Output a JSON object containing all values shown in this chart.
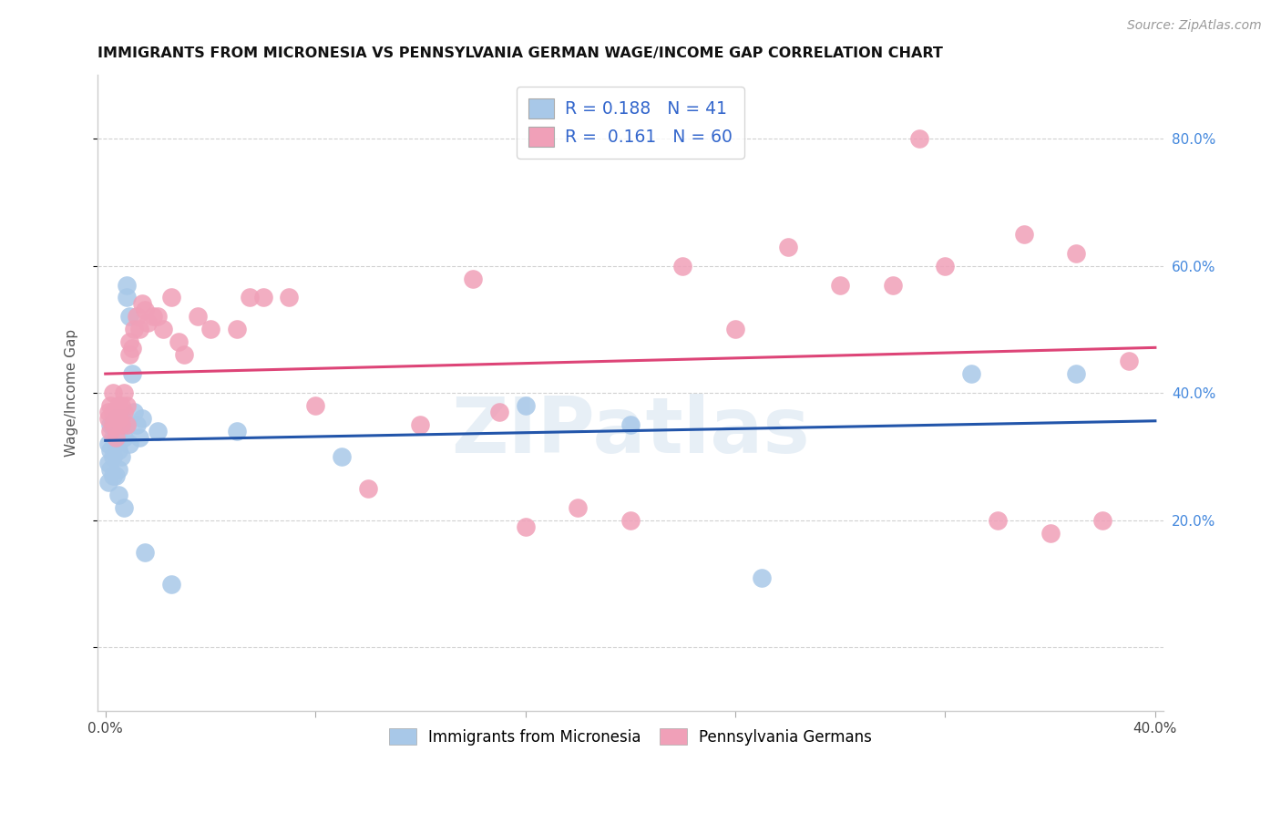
{
  "title": "IMMIGRANTS FROM MICRONESIA VS PENNSYLVANIA GERMAN WAGE/INCOME GAP CORRELATION CHART",
  "source": "Source: ZipAtlas.com",
  "ylabel": "Wage/Income Gap",
  "xlim": [
    -0.003,
    0.403
  ],
  "ylim": [
    -0.1,
    0.9
  ],
  "yticks": [
    0.0,
    0.2,
    0.4,
    0.6,
    0.8
  ],
  "xtick_positions": [
    0.0,
    0.08,
    0.16,
    0.24,
    0.32,
    0.4
  ],
  "xtick_labels": [
    "0.0%",
    "",
    "",
    "",
    "",
    "40.0%"
  ],
  "ytick_right_labels": [
    "",
    "20.0%",
    "40.0%",
    "60.0%",
    "80.0%"
  ],
  "legend_labels": [
    "Immigrants from Micronesia",
    "Pennsylvania Germans"
  ],
  "series1_color": "#a8c8e8",
  "series2_color": "#f0a0b8",
  "line1_color": "#2255aa",
  "line2_color": "#dd4477",
  "R1": 0.188,
  "N1": 41,
  "R2": 0.161,
  "N2": 60,
  "watermark": "ZIPatlas",
  "blue_x": [
    0.001,
    0.001,
    0.001,
    0.002,
    0.002,
    0.002,
    0.003,
    0.003,
    0.003,
    0.003,
    0.004,
    0.004,
    0.004,
    0.005,
    0.005,
    0.005,
    0.005,
    0.006,
    0.006,
    0.007,
    0.007,
    0.008,
    0.008,
    0.008,
    0.009,
    0.009,
    0.01,
    0.011,
    0.012,
    0.013,
    0.014,
    0.015,
    0.02,
    0.025,
    0.05,
    0.09,
    0.16,
    0.2,
    0.25,
    0.33,
    0.37
  ],
  "blue_y": [
    0.29,
    0.32,
    0.26,
    0.31,
    0.28,
    0.35,
    0.33,
    0.3,
    0.27,
    0.35,
    0.32,
    0.27,
    0.36,
    0.34,
    0.31,
    0.28,
    0.24,
    0.3,
    0.36,
    0.33,
    0.22,
    0.55,
    0.57,
    0.35,
    0.32,
    0.52,
    0.43,
    0.37,
    0.35,
    0.33,
    0.36,
    0.15,
    0.34,
    0.1,
    0.34,
    0.3,
    0.38,
    0.35,
    0.11,
    0.43,
    0.43
  ],
  "pink_x": [
    0.001,
    0.001,
    0.002,
    0.002,
    0.003,
    0.003,
    0.003,
    0.004,
    0.004,
    0.005,
    0.005,
    0.005,
    0.006,
    0.006,
    0.007,
    0.007,
    0.008,
    0.008,
    0.009,
    0.009,
    0.01,
    0.011,
    0.012,
    0.013,
    0.014,
    0.015,
    0.016,
    0.018,
    0.02,
    0.022,
    0.025,
    0.028,
    0.03,
    0.035,
    0.04,
    0.05,
    0.055,
    0.06,
    0.07,
    0.08,
    0.1,
    0.12,
    0.14,
    0.15,
    0.16,
    0.18,
    0.2,
    0.22,
    0.24,
    0.26,
    0.28,
    0.3,
    0.31,
    0.32,
    0.34,
    0.35,
    0.36,
    0.37,
    0.38,
    0.39
  ],
  "pink_y": [
    0.36,
    0.37,
    0.34,
    0.38,
    0.35,
    0.37,
    0.4,
    0.33,
    0.37,
    0.36,
    0.38,
    0.36,
    0.35,
    0.38,
    0.37,
    0.4,
    0.35,
    0.38,
    0.46,
    0.48,
    0.47,
    0.5,
    0.52,
    0.5,
    0.54,
    0.53,
    0.51,
    0.52,
    0.52,
    0.5,
    0.55,
    0.48,
    0.46,
    0.52,
    0.5,
    0.5,
    0.55,
    0.55,
    0.55,
    0.38,
    0.25,
    0.35,
    0.58,
    0.37,
    0.19,
    0.22,
    0.2,
    0.6,
    0.5,
    0.63,
    0.57,
    0.57,
    0.8,
    0.6,
    0.2,
    0.65,
    0.18,
    0.62,
    0.2,
    0.45
  ]
}
